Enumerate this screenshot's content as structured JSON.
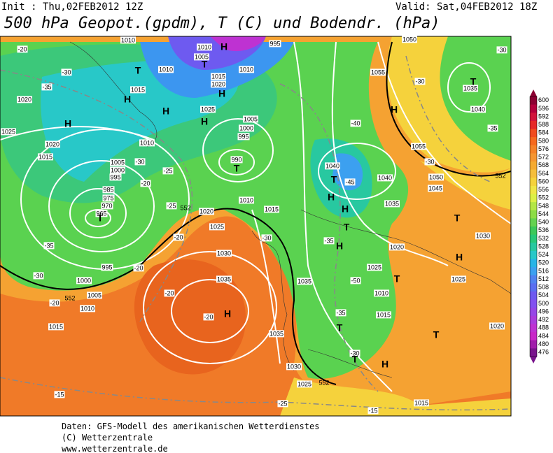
{
  "header": {
    "init": "Init : Thu,02FEB2012 12Z",
    "valid": "Valid: Sat,04FEB2012 18Z",
    "title": "500 hPa Geopot.(gpdm), T (C) und Bodendr. (hPa)"
  },
  "map": {
    "pressure_labels": [
      "1010",
      "1010",
      "1005",
      "1010",
      "1015",
      "1020",
      "1025",
      "1020",
      "1025",
      "1020",
      "1015",
      "1005",
      "1000",
      "995",
      "985",
      "975",
      "970",
      "965",
      "1005",
      "1000",
      "995",
      "990",
      "1010",
      "1015",
      "1020",
      "1025",
      "1030",
      "1035",
      "995",
      "1000",
      "1005",
      "1010",
      "1015",
      "1035",
      "1030",
      "1025",
      "1015",
      "1040",
      "1040",
      "1035",
      "1045",
      "1050",
      "1055",
      "1055",
      "1050",
      "1035",
      "1040",
      "1030",
      "1025",
      "1020",
      "1020",
      "1025",
      "1010",
      "1015",
      "1035",
      "995",
      "1010",
      "1015",
      "1010"
    ],
    "temperature_labels": [
      "-20",
      "-35",
      "-30",
      "-25",
      "-30",
      "-20",
      "-25",
      "-20",
      "-20",
      "-20",
      "-20",
      "-35",
      "-30",
      "-20",
      "-15",
      "-30",
      "-25",
      "-40",
      "-45",
      "-35",
      "-50",
      "-35",
      "-30",
      "-15",
      "-30",
      "-30",
      "-35",
      "-30"
    ],
    "pressure_centers": [
      "H",
      "T",
      "H",
      "T",
      "H",
      "H",
      "H",
      "H",
      "T",
      "T",
      "H",
      "H",
      "T",
      "T",
      "H",
      "H",
      "T",
      "H",
      "T",
      "H",
      "T",
      "T",
      "H",
      "T",
      "T"
    ],
    "contour_labels": [
      "552",
      "552",
      "552",
      "552"
    ]
  },
  "colorbar": {
    "labels": [
      600,
      596,
      592,
      588,
      584,
      580,
      576,
      572,
      568,
      564,
      560,
      556,
      552,
      548,
      544,
      540,
      536,
      532,
      528,
      524,
      520,
      516,
      512,
      508,
      504,
      500,
      496,
      492,
      488,
      484,
      480,
      476
    ],
    "colors": [
      "#8c0032",
      "#b4003c",
      "#d2143c",
      "#e62828",
      "#f04b1e",
      "#f5691e",
      "#f58228",
      "#f59632",
      "#f5aa32",
      "#f5be3c",
      "#f5d23c",
      "#f0e646",
      "#dcf046",
      "#b4e646",
      "#8cdc46",
      "#64d250",
      "#3cc85a",
      "#28c878",
      "#28c8a0",
      "#28c8c8",
      "#28b4e6",
      "#3ca0f0",
      "#5082f0",
      "#5a6ef0",
      "#6e5af0",
      "#8250f0",
      "#9646e6",
      "#aa3cdc",
      "#be32d2",
      "#c828c8",
      "#a01eaa",
      "#78148c"
    ]
  },
  "footer": {
    "line1": "Daten: GFS-Modell des amerikanischen Wetterdienstes",
    "line2": "(C) Wetterzentrale",
    "line3": "www.wetterzentrale.de"
  }
}
